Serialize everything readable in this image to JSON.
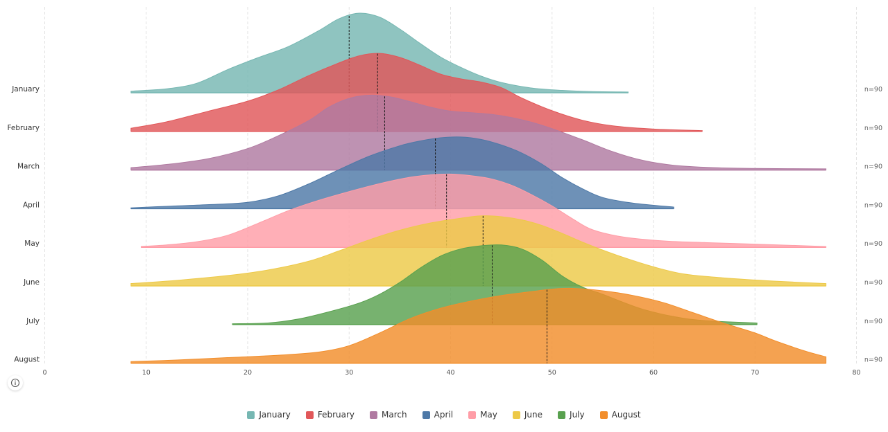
{
  "chart_data": {
    "type": "ridgeline",
    "x_ticks": [
      0,
      10,
      20,
      30,
      40,
      50,
      60,
      70,
      80
    ],
    "xlim": [
      0,
      80
    ],
    "grid": true,
    "legend_position": "bottom-center",
    "series": [
      {
        "name": "January",
        "color": "#76b7b2",
        "n_label": "n=90",
        "median": 30.0,
        "range": [
          8.5,
          57.5
        ],
        "density": [
          [
            8.5,
            0.02
          ],
          [
            12,
            0.05
          ],
          [
            15,
            0.12
          ],
          [
            18,
            0.29
          ],
          [
            21,
            0.44
          ],
          [
            24,
            0.58
          ],
          [
            27,
            0.78
          ],
          [
            29,
            0.93
          ],
          [
            31,
            1.0
          ],
          [
            33,
            0.95
          ],
          [
            35,
            0.8
          ],
          [
            37,
            0.62
          ],
          [
            39,
            0.45
          ],
          [
            41,
            0.32
          ],
          [
            43,
            0.21
          ],
          [
            45,
            0.13
          ],
          [
            48,
            0.06
          ],
          [
            51,
            0.03
          ],
          [
            54,
            0.015
          ],
          [
            57.5,
            0.01
          ]
        ]
      },
      {
        "name": "February",
        "color": "#e15759",
        "n_label": "n=90",
        "median": 32.8,
        "range": [
          8.5,
          64.8
        ],
        "density": [
          [
            8.5,
            0.04
          ],
          [
            12,
            0.12
          ],
          [
            16,
            0.25
          ],
          [
            20,
            0.38
          ],
          [
            23,
            0.52
          ],
          [
            26,
            0.7
          ],
          [
            29,
            0.86
          ],
          [
            31,
            0.95
          ],
          [
            33,
            0.98
          ],
          [
            35,
            0.93
          ],
          [
            37,
            0.83
          ],
          [
            39,
            0.72
          ],
          [
            41,
            0.66
          ],
          [
            43,
            0.62
          ],
          [
            45,
            0.55
          ],
          [
            47,
            0.42
          ],
          [
            50,
            0.26
          ],
          [
            53,
            0.14
          ],
          [
            56,
            0.07
          ],
          [
            60,
            0.03
          ],
          [
            64.8,
            0.01
          ]
        ]
      },
      {
        "name": "March",
        "color": "#b07aa1",
        "n_label": "n=90",
        "median": 33.5,
        "range": [
          8.5,
          77.0
        ],
        "density": [
          [
            8.5,
            0.03
          ],
          [
            12,
            0.07
          ],
          [
            16,
            0.14
          ],
          [
            20,
            0.27
          ],
          [
            23,
            0.43
          ],
          [
            26,
            0.62
          ],
          [
            28,
            0.79
          ],
          [
            30,
            0.9
          ],
          [
            32,
            0.94
          ],
          [
            34,
            0.92
          ],
          [
            36,
            0.86
          ],
          [
            38,
            0.79
          ],
          [
            40,
            0.74
          ],
          [
            42,
            0.72
          ],
          [
            44,
            0.7
          ],
          [
            46,
            0.66
          ],
          [
            48,
            0.6
          ],
          [
            50,
            0.52
          ],
          [
            53,
            0.38
          ],
          [
            56,
            0.23
          ],
          [
            59,
            0.12
          ],
          [
            62,
            0.06
          ],
          [
            66,
            0.03
          ],
          [
            70,
            0.02
          ],
          [
            77,
            0.015
          ]
        ]
      },
      {
        "name": "April",
        "color": "#4e79a7",
        "n_label": "n=90",
        "median": 38.5,
        "range": [
          8.5,
          62.0
        ],
        "density": [
          [
            8.5,
            0.01
          ],
          [
            12,
            0.03
          ],
          [
            16,
            0.05
          ],
          [
            20,
            0.08
          ],
          [
            23,
            0.16
          ],
          [
            26,
            0.31
          ],
          [
            29,
            0.49
          ],
          [
            32,
            0.66
          ],
          [
            35,
            0.79
          ],
          [
            37,
            0.85
          ],
          [
            39,
            0.89
          ],
          [
            41,
            0.9
          ],
          [
            43,
            0.87
          ],
          [
            45,
            0.8
          ],
          [
            47,
            0.7
          ],
          [
            49,
            0.56
          ],
          [
            51,
            0.39
          ],
          [
            53,
            0.25
          ],
          [
            55,
            0.14
          ],
          [
            58,
            0.07
          ],
          [
            62,
            0.02
          ]
        ]
      },
      {
        "name": "May",
        "color": "#ff9da7",
        "n_label": "n=90",
        "median": 39.6,
        "range": [
          9.5,
          77.0
        ],
        "density": [
          [
            9.5,
            0.01
          ],
          [
            12,
            0.03
          ],
          [
            15,
            0.07
          ],
          [
            18,
            0.15
          ],
          [
            21,
            0.3
          ],
          [
            24,
            0.46
          ],
          [
            27,
            0.59
          ],
          [
            30,
            0.7
          ],
          [
            33,
            0.8
          ],
          [
            36,
            0.88
          ],
          [
            38,
            0.91
          ],
          [
            40,
            0.92
          ],
          [
            42,
            0.9
          ],
          [
            44,
            0.86
          ],
          [
            46,
            0.78
          ],
          [
            48,
            0.66
          ],
          [
            50,
            0.52
          ],
          [
            52,
            0.36
          ],
          [
            54,
            0.22
          ],
          [
            57,
            0.13
          ],
          [
            61,
            0.08
          ],
          [
            65,
            0.06
          ],
          [
            70,
            0.04
          ],
          [
            77,
            0.01
          ]
        ]
      },
      {
        "name": "June",
        "color": "#edc948",
        "n_label": "n=90",
        "median": 43.2,
        "range": [
          8.5,
          77.0
        ],
        "density": [
          [
            8.5,
            0.03
          ],
          [
            13,
            0.07
          ],
          [
            18,
            0.13
          ],
          [
            22,
            0.2
          ],
          [
            26,
            0.31
          ],
          [
            29,
            0.44
          ],
          [
            32,
            0.58
          ],
          [
            35,
            0.7
          ],
          [
            38,
            0.79
          ],
          [
            41,
            0.85
          ],
          [
            43,
            0.88
          ],
          [
            45,
            0.87
          ],
          [
            47,
            0.83
          ],
          [
            49,
            0.76
          ],
          [
            51,
            0.66
          ],
          [
            53,
            0.55
          ],
          [
            55,
            0.45
          ],
          [
            57,
            0.36
          ],
          [
            60,
            0.24
          ],
          [
            63,
            0.15
          ],
          [
            67,
            0.1
          ],
          [
            72,
            0.06
          ],
          [
            77,
            0.03
          ]
        ]
      },
      {
        "name": "July",
        "color": "#59a14f",
        "n_label": "n=90",
        "median": 44.1,
        "range": [
          18.5,
          70.2
        ],
        "density": [
          [
            18.5,
            0.01
          ],
          [
            22,
            0.02
          ],
          [
            25,
            0.07
          ],
          [
            28,
            0.16
          ],
          [
            31,
            0.27
          ],
          [
            33,
            0.38
          ],
          [
            35,
            0.53
          ],
          [
            37,
            0.71
          ],
          [
            39,
            0.86
          ],
          [
            41,
            0.95
          ],
          [
            43,
            0.99
          ],
          [
            45,
            1.0
          ],
          [
            47,
            0.95
          ],
          [
            49,
            0.81
          ],
          [
            51,
            0.61
          ],
          [
            53,
            0.47
          ],
          [
            55,
            0.38
          ],
          [
            57,
            0.28
          ],
          [
            59,
            0.19
          ],
          [
            62,
            0.1
          ],
          [
            65,
            0.05
          ],
          [
            70.2,
            0.02
          ]
        ]
      },
      {
        "name": "August",
        "color": "#f28e2b",
        "n_label": "n=90",
        "median": 49.5,
        "range": [
          8.5,
          77.0
        ],
        "density": [
          [
            8.5,
            0.02
          ],
          [
            13,
            0.04
          ],
          [
            18,
            0.07
          ],
          [
            23,
            0.1
          ],
          [
            27,
            0.14
          ],
          [
            30,
            0.22
          ],
          [
            33,
            0.38
          ],
          [
            36,
            0.56
          ],
          [
            39,
            0.69
          ],
          [
            42,
            0.78
          ],
          [
            45,
            0.85
          ],
          [
            48,
            0.9
          ],
          [
            50,
            0.93
          ],
          [
            52,
            0.94
          ],
          [
            55,
            0.91
          ],
          [
            58,
            0.85
          ],
          [
            61,
            0.76
          ],
          [
            64,
            0.63
          ],
          [
            67,
            0.5
          ],
          [
            70,
            0.38
          ],
          [
            72,
            0.28
          ],
          [
            75,
            0.15
          ],
          [
            77,
            0.08
          ]
        ]
      }
    ]
  },
  "info_button": {
    "icon": "info-icon"
  }
}
